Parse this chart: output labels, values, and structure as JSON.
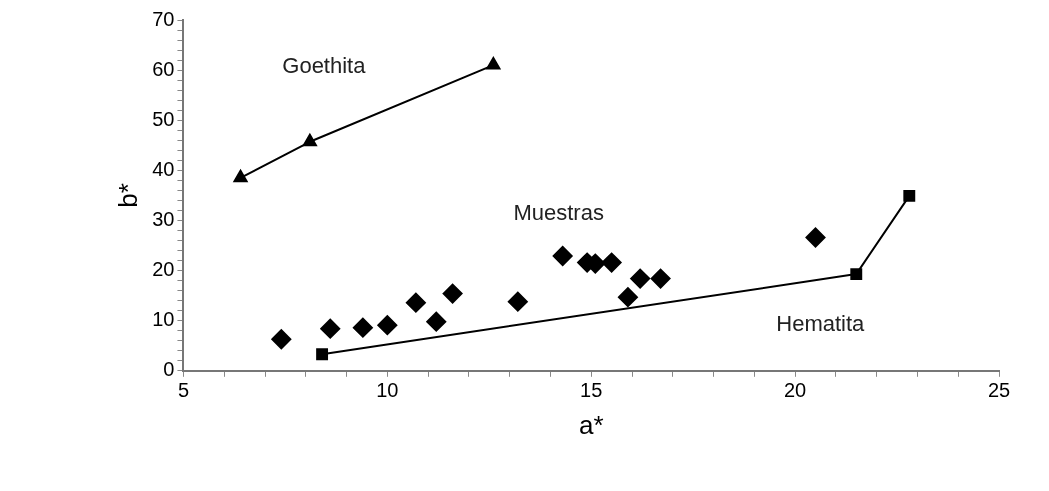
{
  "chart_data": {
    "type": "scatter",
    "xlabel": "a*",
    "ylabel": "b*",
    "xlim": [
      5,
      25
    ],
    "ylim": [
      0,
      70
    ],
    "xticks": [
      5,
      {
        "value": 6,
        "label": null
      },
      {
        "value": 7,
        "label": null
      },
      {
        "value": 8,
        "label": null
      },
      {
        "value": 9,
        "label": null
      },
      10,
      {
        "value": 11,
        "label": null
      },
      {
        "value": 12,
        "label": null
      },
      {
        "value": 13,
        "label": null
      },
      {
        "value": 14,
        "label": null
      },
      15,
      {
        "value": 16,
        "label": null
      },
      {
        "value": 17,
        "label": null
      },
      {
        "value": 18,
        "label": null
      },
      {
        "value": 19,
        "label": null
      },
      20,
      {
        "value": 21,
        "label": null
      },
      {
        "value": 22,
        "label": null
      },
      {
        "value": 23,
        "label": null
      },
      {
        "value": 24,
        "label": null
      },
      25
    ],
    "yticks": [
      0,
      {
        "value": 2,
        "label": null
      },
      {
        "value": 4,
        "label": null
      },
      {
        "value": 6,
        "label": null
      },
      {
        "value": 8,
        "label": null
      },
      10,
      {
        "value": 12,
        "label": null
      },
      {
        "value": 14,
        "label": null
      },
      {
        "value": 16,
        "label": null
      },
      {
        "value": 18,
        "label": null
      },
      20,
      {
        "value": 22,
        "label": null
      },
      {
        "value": 24,
        "label": null
      },
      {
        "value": 26,
        "label": null
      },
      {
        "value": 28,
        "label": null
      },
      30,
      {
        "value": 32,
        "label": null
      },
      {
        "value": 34,
        "label": null
      },
      {
        "value": 36,
        "label": null
      },
      {
        "value": 38,
        "label": null
      },
      40,
      {
        "value": 42,
        "label": null
      },
      {
        "value": 44,
        "label": null
      },
      {
        "value": 46,
        "label": null
      },
      {
        "value": 48,
        "label": null
      },
      50,
      {
        "value": 52,
        "label": null
      },
      {
        "value": 54,
        "label": null
      },
      {
        "value": 56,
        "label": null
      },
      {
        "value": 58,
        "label": null
      },
      60,
      {
        "value": 62,
        "label": null
      },
      {
        "value": 64,
        "label": null
      },
      {
        "value": 66,
        "label": null
      },
      {
        "value": 68,
        "label": null
      },
      70
    ],
    "grid": false,
    "legend": false,
    "series": [
      {
        "name": "Goethita",
        "type": "line",
        "marker": "triangle",
        "color": "#000000",
        "x": [
          6.4,
          8.1,
          12.6
        ],
        "values": [
          38.5,
          45.7,
          61
        ]
      },
      {
        "name": "Hematita",
        "type": "line",
        "marker": "square",
        "color": "#000000",
        "x": [
          8.4,
          21.5,
          22.8
        ],
        "values": [
          3.3,
          19.3,
          34.9
        ]
      },
      {
        "name": "Muestras",
        "type": "scatter",
        "marker": "diamond",
        "color": "#000000",
        "x": [
          7.4,
          8.6,
          9.4,
          10.0,
          10.7,
          11.2,
          11.6,
          13.2,
          14.3,
          14.9,
          15.1,
          15.5,
          15.9,
          16.2,
          16.7,
          20.5
        ],
        "values": [
          6.3,
          8.4,
          8.6,
          9.1,
          13.6,
          9.8,
          15.4,
          13.8,
          22.9,
          21.6,
          21.4,
          21.6,
          14.7,
          18.4,
          18.4,
          26.6
        ]
      }
    ]
  }
}
